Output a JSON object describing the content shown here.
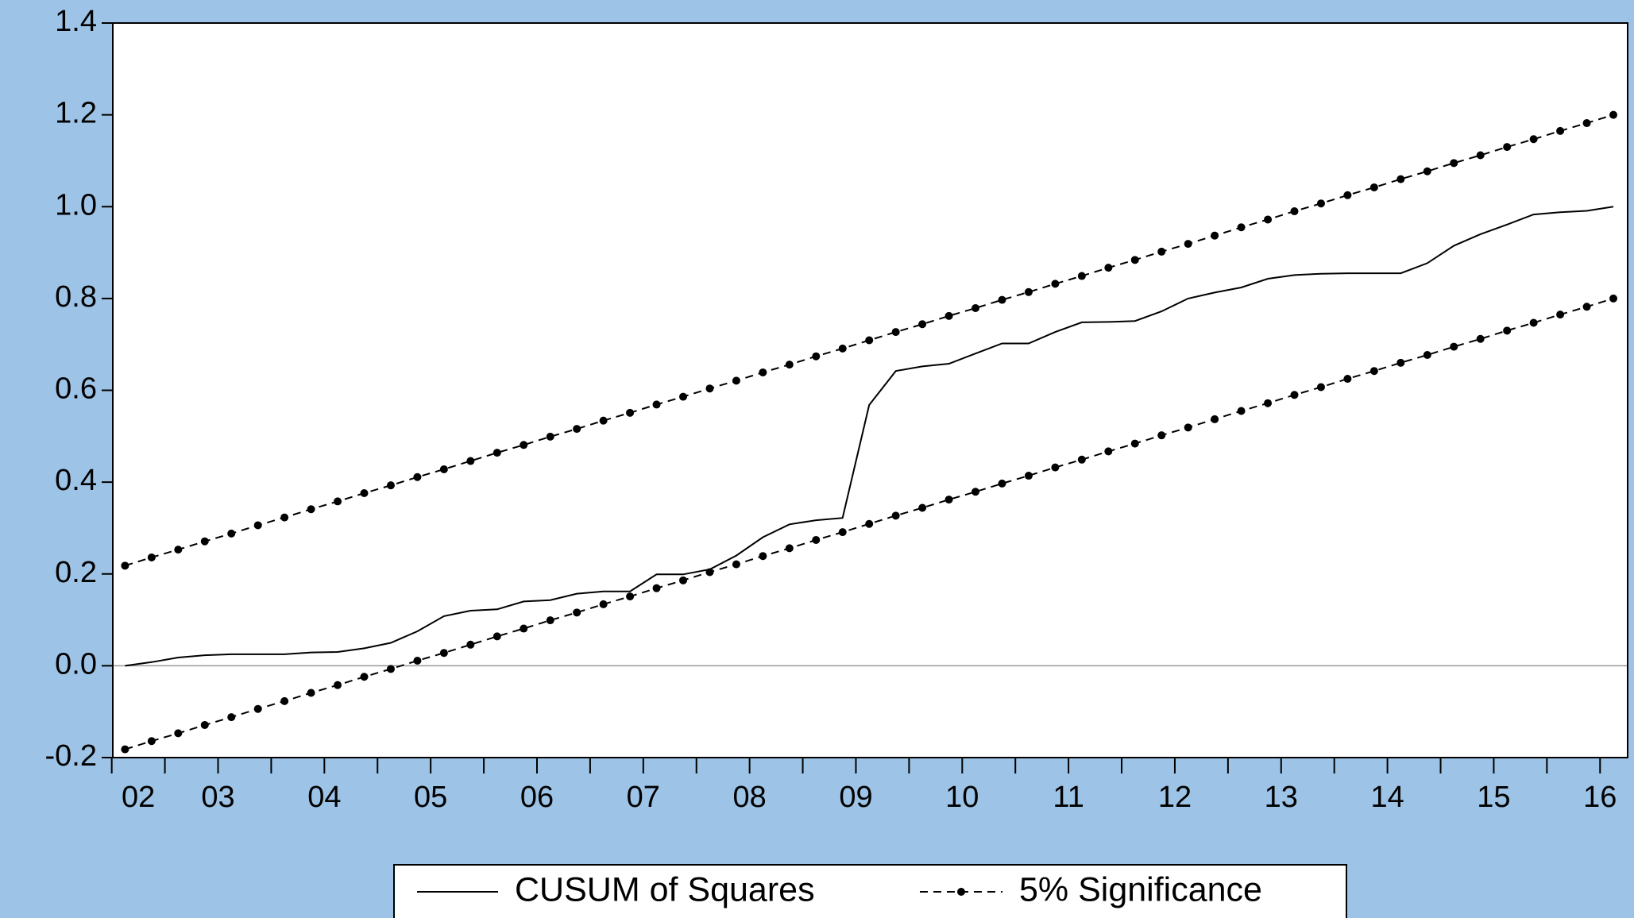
{
  "chart_data": {
    "type": "line",
    "categories": [
      "02",
      null,
      null,
      "03",
      null,
      null,
      null,
      "04",
      null,
      null,
      null,
      "05",
      null,
      null,
      null,
      "06",
      null,
      null,
      null,
      "07",
      null,
      null,
      null,
      "08",
      null,
      null,
      null,
      "09",
      null,
      null,
      null,
      "10",
      null,
      null,
      null,
      "11",
      null,
      null,
      null,
      "12",
      null,
      null,
      null,
      "13",
      null,
      null,
      null,
      "14",
      null,
      null,
      null,
      "15",
      null,
      null,
      null,
      "16",
      null
    ],
    "series": [
      {
        "name": "CUSUM of Squares",
        "color": "#000000",
        "style": "solid",
        "values": [
          0.0,
          0.008,
          0.018,
          0.023,
          0.025,
          0.025,
          0.025,
          0.029,
          0.03,
          0.038,
          0.05,
          0.075,
          0.108,
          0.12,
          0.123,
          0.14,
          0.143,
          0.157,
          0.162,
          0.162,
          0.199,
          0.199,
          0.21,
          0.24,
          0.28,
          0.308,
          0.317,
          0.322,
          0.568,
          0.642,
          0.652,
          0.658,
          0.68,
          0.702,
          0.702,
          0.727,
          0.748,
          0.749,
          0.751,
          0.772,
          0.8,
          0.813,
          0.824,
          0.843,
          0.851,
          0.854,
          0.855,
          0.855,
          0.855,
          0.877,
          0.915,
          0.94,
          0.961,
          0.983,
          0.988,
          0.991,
          1.0
        ]
      },
      {
        "name": "5% Significance",
        "color": "#000000",
        "style": "dashed-dotted",
        "values": [
          0.218,
          0.236,
          0.253,
          0.271,
          0.288,
          0.306,
          0.323,
          0.341,
          0.358,
          0.376,
          0.393,
          0.411,
          0.428,
          0.446,
          0.464,
          0.481,
          0.499,
          0.516,
          0.534,
          0.551,
          0.569,
          0.586,
          0.604,
          0.621,
          0.639,
          0.656,
          0.674,
          0.691,
          0.709,
          0.727,
          0.744,
          0.762,
          0.779,
          0.797,
          0.814,
          0.832,
          0.849,
          0.867,
          0.884,
          0.902,
          0.919,
          0.937,
          0.955,
          0.972,
          0.99,
          1.007,
          1.025,
          1.042,
          1.06,
          1.077,
          1.095,
          1.112,
          1.13,
          1.147,
          1.165,
          1.182,
          1.2
        ],
        "lower": [
          -0.182,
          -0.164,
          -0.147,
          -0.129,
          -0.112,
          -0.094,
          -0.077,
          -0.059,
          -0.042,
          -0.024,
          -0.007,
          0.011,
          0.028,
          0.046,
          0.064,
          0.081,
          0.099,
          0.116,
          0.134,
          0.151,
          0.169,
          0.186,
          0.204,
          0.221,
          0.239,
          0.256,
          0.274,
          0.291,
          0.309,
          0.327,
          0.344,
          0.362,
          0.379,
          0.397,
          0.414,
          0.432,
          0.449,
          0.467,
          0.484,
          0.502,
          0.519,
          0.537,
          0.555,
          0.572,
          0.59,
          0.607,
          0.625,
          0.642,
          0.66,
          0.677,
          0.695,
          0.712,
          0.73,
          0.747,
          0.765,
          0.782,
          0.8
        ]
      }
    ],
    "ylim": [
      -0.2,
      1.4
    ],
    "yticks": [
      {
        "value": -0.2,
        "label": "-0.2"
      },
      {
        "value": 0,
        "label": "0.0"
      },
      0.2,
      0.4,
      0.6,
      0.8,
      {
        "value": 1,
        "label": "1.0"
      },
      1.2,
      1.4
    ],
    "zero_line": true,
    "grid": false,
    "legend": "bottom"
  }
}
